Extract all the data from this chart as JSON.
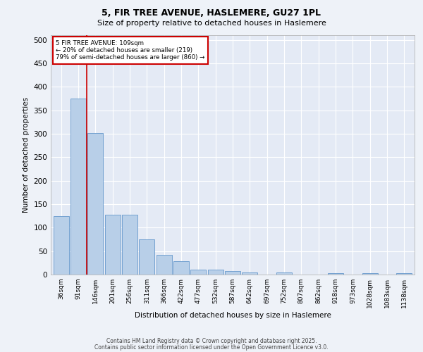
{
  "title1": "5, FIR TREE AVENUE, HASLEMERE, GU27 1PL",
  "title2": "Size of property relative to detached houses in Haslemere",
  "xlabel": "Distribution of detached houses by size in Haslemere",
  "ylabel": "Number of detached properties",
  "categories": [
    "36sqm",
    "91sqm",
    "146sqm",
    "201sqm",
    "256sqm",
    "311sqm",
    "366sqm",
    "422sqm",
    "477sqm",
    "532sqm",
    "587sqm",
    "642sqm",
    "697sqm",
    "752sqm",
    "807sqm",
    "862sqm",
    "918sqm",
    "973sqm",
    "1028sqm",
    "1083sqm",
    "1138sqm"
  ],
  "values": [
    125,
    375,
    302,
    127,
    127,
    75,
    42,
    28,
    10,
    10,
    8,
    5,
    0,
    4,
    0,
    0,
    3,
    0,
    3,
    0,
    3
  ],
  "bar_color": "#b8cfe8",
  "bar_edge_color": "#6699cc",
  "red_line_x": 1.5,
  "annotation_line1": "5 FIR TREE AVENUE: 109sqm",
  "annotation_line2": "← 20% of detached houses are smaller (219)",
  "annotation_line3": "79% of semi-detached houses are larger (860) →",
  "annotation_box_color": "#ffffff",
  "annotation_box_edge": "#cc0000",
  "annotation_text_color": "#000000",
  "red_line_color": "#cc0000",
  "background_color": "#eef2f8",
  "plot_bg_color": "#e4eaf5",
  "grid_color": "#ffffff",
  "footer1": "Contains HM Land Registry data © Crown copyright and database right 2025.",
  "footer2": "Contains public sector information licensed under the Open Government Licence v3.0.",
  "ylim": [
    0,
    510
  ],
  "yticks": [
    0,
    50,
    100,
    150,
    200,
    250,
    300,
    350,
    400,
    450,
    500
  ]
}
